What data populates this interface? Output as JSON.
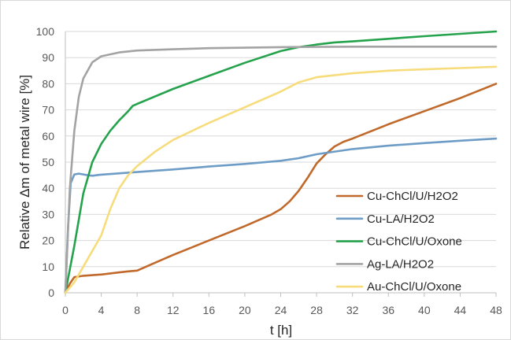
{
  "chart_data": {
    "type": "line",
    "title": "",
    "xlabel": "t [h]",
    "ylabel": "Relative Δm of metal wire [%]",
    "xlim": [
      0,
      48
    ],
    "ylim": [
      0,
      100
    ],
    "xticks": [
      0,
      4,
      8,
      12,
      16,
      20,
      24,
      28,
      32,
      36,
      40,
      44,
      48
    ],
    "yticks": [
      0,
      10,
      20,
      30,
      40,
      50,
      60,
      70,
      80,
      90,
      100
    ],
    "grid": "horizontal",
    "legend_position": "right",
    "series": [
      {
        "name": "Cu-ChCl/U/H2O2",
        "color": "#C0692B",
        "points": [
          [
            0,
            0
          ],
          [
            0.5,
            3.5
          ],
          [
            1,
            6
          ],
          [
            2,
            6.5
          ],
          [
            4,
            7
          ],
          [
            6,
            7.8
          ],
          [
            7,
            8.2
          ],
          [
            8,
            8.5
          ],
          [
            10,
            11.5
          ],
          [
            12,
            14.5
          ],
          [
            16,
            20
          ],
          [
            20,
            25.5
          ],
          [
            23,
            30
          ],
          [
            24,
            32
          ],
          [
            25,
            35
          ],
          [
            26,
            39
          ],
          [
            27,
            44
          ],
          [
            28,
            49.5
          ],
          [
            29,
            53
          ],
          [
            30,
            56
          ],
          [
            31,
            57.8
          ],
          [
            32,
            59
          ],
          [
            36,
            64.5
          ],
          [
            40,
            69.5
          ],
          [
            44,
            74.5
          ],
          [
            48,
            80
          ]
        ]
      },
      {
        "name": "Cu-LA/H2O2",
        "color": "#6D9DC7",
        "points": [
          [
            0,
            0
          ],
          [
            0.3,
            25
          ],
          [
            0.6,
            42
          ],
          [
            1,
            45.3
          ],
          [
            1.5,
            45.6
          ],
          [
            2.5,
            45
          ],
          [
            3,
            44.8
          ],
          [
            4,
            45.2
          ],
          [
            8,
            46.2
          ],
          [
            12,
            47.2
          ],
          [
            16,
            48.3
          ],
          [
            20,
            49.3
          ],
          [
            24,
            50.5
          ],
          [
            26,
            51.5
          ],
          [
            28,
            53
          ],
          [
            32,
            55
          ],
          [
            36,
            56.3
          ],
          [
            40,
            57.3
          ],
          [
            44,
            58.2
          ],
          [
            48,
            59
          ]
        ]
      },
      {
        "name": "Cu-ChCl/U/Oxone",
        "color": "#24A24C",
        "points": [
          [
            0,
            0
          ],
          [
            1,
            18
          ],
          [
            2,
            38
          ],
          [
            3,
            50
          ],
          [
            4,
            57
          ],
          [
            5,
            62
          ],
          [
            6,
            66
          ],
          [
            7,
            69.5
          ],
          [
            7.5,
            71.5
          ],
          [
            8,
            72.3
          ],
          [
            12,
            78
          ],
          [
            16,
            83
          ],
          [
            20,
            88
          ],
          [
            24,
            92.5
          ],
          [
            26,
            94
          ],
          [
            28,
            95
          ],
          [
            30,
            95.8
          ],
          [
            32,
            96.2
          ],
          [
            36,
            97.2
          ],
          [
            40,
            98.2
          ],
          [
            44,
            99.1
          ],
          [
            48,
            100
          ]
        ]
      },
      {
        "name": "Ag-LA/H2O2",
        "color": "#A3A3A3",
        "points": [
          [
            0,
            0
          ],
          [
            0.5,
            40
          ],
          [
            1,
            62
          ],
          [
            1.5,
            75
          ],
          [
            2,
            82
          ],
          [
            3,
            88.2
          ],
          [
            4,
            90.5
          ],
          [
            6,
            92
          ],
          [
            8,
            92.7
          ],
          [
            12,
            93.2
          ],
          [
            16,
            93.6
          ],
          [
            20,
            93.8
          ],
          [
            24,
            94
          ],
          [
            28,
            94.1
          ],
          [
            32,
            94.2
          ],
          [
            36,
            94.2
          ],
          [
            40,
            94.2
          ],
          [
            44,
            94.2
          ],
          [
            48,
            94.2
          ]
        ]
      },
      {
        "name": "Au-ChCl/U/Oxone",
        "color": "#F7DC7C",
        "points": [
          [
            0,
            0
          ],
          [
            1,
            4
          ],
          [
            2,
            10
          ],
          [
            3,
            16
          ],
          [
            4,
            22
          ],
          [
            5,
            32
          ],
          [
            6,
            40
          ],
          [
            7,
            45
          ],
          [
            8,
            48.5
          ],
          [
            10,
            54
          ],
          [
            12,
            58.5
          ],
          [
            16,
            65
          ],
          [
            20,
            71
          ],
          [
            24,
            77
          ],
          [
            26,
            80.5
          ],
          [
            28,
            82.5
          ],
          [
            32,
            84
          ],
          [
            36,
            85
          ],
          [
            40,
            85.5
          ],
          [
            44,
            86
          ],
          [
            48,
            86.5
          ]
        ]
      }
    ]
  }
}
